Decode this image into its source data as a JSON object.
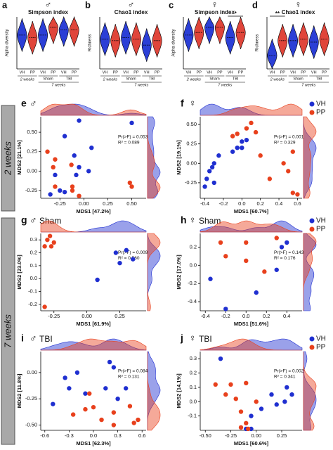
{
  "row_labels": [
    "2 weeks",
    "7 weeks"
  ],
  "chart_data": [
    {
      "type": "violin",
      "panel": "a",
      "symbol": "♂",
      "symbol_color": "#3a7bd5",
      "title": "Simpson index",
      "ylabel": "Alpha diversity",
      "ylim": [
        0.8,
        1.0
      ],
      "colors": [
        "#2b3fd6",
        "#e0453a"
      ],
      "groups": [
        {
          "label": "2 weeks",
          "categories": [
            "VH",
            "PP"
          ],
          "values": [
            0.93,
            0.92
          ]
        },
        {
          "label": "7 weeks",
          "subgroups": [
            {
              "label": "Sham",
              "categories": [
                "VH",
                "PP"
              ],
              "values": [
                0.93,
                0.96
              ]
            },
            {
              "label": "TBI",
              "categories": [
                "VH",
                "PP"
              ],
              "values": [
                0.95,
                0.95
              ]
            }
          ]
        }
      ]
    },
    {
      "type": "violin",
      "panel": "b",
      "symbol": "♂",
      "symbol_color": "#3a7bd5",
      "title": "Chao1 index",
      "ylabel": "Richness",
      "ylim": [
        100,
        450
      ],
      "colors": [
        "#2b3fd6",
        "#e0453a"
      ],
      "groups": [
        {
          "label": "2 weeks",
          "categories": [
            "VH",
            "PP"
          ],
          "values": [
            300,
            290
          ]
        },
        {
          "label": "7 weeks",
          "subgroups": [
            {
              "label": "Sham",
              "categories": [
                "VH",
                "PP"
              ],
              "values": [
                310,
                300
              ]
            },
            {
              "label": "TBI",
              "categories": [
                "VH",
                "PP"
              ],
              "values": [
                260,
                290
              ]
            }
          ]
        }
      ]
    },
    {
      "type": "violin",
      "panel": "c",
      "symbol": "♀",
      "symbol_color": "#c0607a",
      "title": "Simpson index",
      "ylabel": "Alpha diversity",
      "ylim": [
        0.8,
        1.0
      ],
      "colors": [
        "#2b3fd6",
        "#e0453a"
      ],
      "groups": [
        {
          "label": "2 weeks",
          "categories": [
            "VH",
            "PP"
          ],
          "values": [
            0.93,
            0.94
          ]
        },
        {
          "label": "7 weeks",
          "subgroups": [
            {
              "label": "Sham",
              "categories": [
                "VH",
                "PP"
              ],
              "values": [
                0.96,
                0.96
              ]
            },
            {
              "label": "TBI",
              "categories": [
                "VH",
                "PP"
              ],
              "values": [
                0.92,
                0.94
              ],
              "significance": "*"
            }
          ]
        }
      ]
    },
    {
      "type": "violin",
      "panel": "d",
      "symbol": "♀",
      "symbol_color": "#c0607a",
      "title": "Chao1 index",
      "ylabel": "Richness",
      "ylim": [
        100,
        450
      ],
      "colors": [
        "#2b3fd6",
        "#e0453a"
      ],
      "groups": [
        {
          "label": "2 weeks",
          "categories": [
            "VH",
            "PP"
          ],
          "values": [
            190,
            290
          ],
          "significance": "**"
        },
        {
          "label": "7 weeks",
          "subgroups": [
            {
              "label": "Sham",
              "categories": [
                "VH",
                "PP"
              ],
              "values": [
                290,
                300
              ]
            },
            {
              "label": "TBI",
              "categories": [
                "VH",
                "PP"
              ],
              "values": [
                280,
                300
              ]
            }
          ]
        }
      ]
    },
    {
      "type": "scatter",
      "panel": "e",
      "symbol": "♂",
      "symbol_color": "#3a7bd5",
      "xlabel": "MDS1 [47.2%]",
      "ylabel": "MDS2 [21.1%]",
      "annotations": [
        "Pr(>F) = 0.053",
        "R² = 0.089"
      ],
      "xlim": [
        -0.45,
        0.65
      ],
      "ylim": [
        -0.35,
        0.7
      ],
      "xticks": [
        -0.25,
        {
          "value": 0,
          "label": "0.00"
        },
        0.25,
        {
          "value": 0.5,
          "label": "0.50"
        }
      ],
      "yticks": [
        -0.25,
        {
          "value": 0,
          "label": "0.00"
        },
        0.25,
        {
          "value": 0.5,
          "label": "0.50"
        }
      ],
      "series": [
        {
          "name": "VH",
          "color": "#1f2fd0",
          "x": [
            -0.05,
            0.5,
            -0.2,
            0.08,
            -0.1,
            -0.05,
            0.05,
            -0.08,
            -0.3,
            -0.35,
            -0.25,
            -0.2
          ],
          "y": [
            0.65,
            0.62,
            0.45,
            0.3,
            0.2,
            0.05,
            0.0,
            -0.05,
            -0.05,
            -0.3,
            -0.25,
            -0.27
          ]
        },
        {
          "name": "PP",
          "color": "#e8401c",
          "x": [
            -0.38,
            -0.3,
            -0.32,
            -0.13,
            -0.12,
            -0.3,
            -0.05,
            0.48,
            0.5,
            -0.12
          ],
          "y": [
            0.25,
            0.15,
            0.05,
            0.08,
            -0.2,
            -0.2,
            -0.32,
            -0.15,
            -0.2,
            -0.25
          ]
        }
      ]
    },
    {
      "type": "scatter",
      "panel": "f",
      "symbol": "♀",
      "symbol_color": "#c0607a",
      "legend": true,
      "xlabel": "MDS1 [60.7%]",
      "ylabel": "MDS2 [19.1%]",
      "annotations": [
        "Pr(>F) = 0.001",
        "R² = 0.329"
      ],
      "xlim": [
        -0.45,
        0.65
      ],
      "ylim": [
        -0.45,
        0.6
      ],
      "xticks": [
        -0.4,
        -0.2,
        {
          "value": 0,
          "label": "0.0"
        },
        0.2,
        0.4,
        0.6
      ],
      "yticks": [
        -0.25,
        {
          "value": 0,
          "label": "0.00"
        },
        0.25,
        {
          "value": 0.5,
          "label": "0.50"
        }
      ],
      "series": [
        {
          "name": "VH",
          "color": "#1f2fd0",
          "x": [
            -0.4,
            -0.38,
            -0.35,
            -0.32,
            -0.3,
            -0.25,
            -0.1,
            -0.05,
            0.0,
            0.05,
            0.0,
            -0.3
          ],
          "y": [
            -0.3,
            -0.2,
            -0.1,
            -0.05,
            0.0,
            0.1,
            0.15,
            0.2,
            0.28,
            0.3,
            0.2,
            -0.25
          ]
        },
        {
          "name": "PP",
          "color": "#e8401c",
          "x": [
            0.1,
            0.15,
            0.05,
            -0.1,
            -0.05,
            0.55,
            0.5,
            0.55,
            0.6,
            0.3,
            0.45,
            0.2
          ],
          "y": [
            0.52,
            0.4,
            0.45,
            0.35,
            0.38,
            0.15,
            -0.1,
            -0.38,
            -0.4,
            -0.2,
            0.0,
            0.1
          ]
        }
      ]
    },
    {
      "type": "scatter",
      "panel": "g",
      "symbol": "♂",
      "symbol_color": "#3a7bd5",
      "subtitle": "Sham",
      "xlabel": "MDS1 [61.9%]",
      "ylabel": "MDS2 [23.0%]",
      "annotations": [
        "Pr(>F) = 0.009",
        "R² = 0.560"
      ],
      "xlim": [
        -0.35,
        0.45
      ],
      "ylim": [
        -0.25,
        0.35
      ],
      "xticks": [
        -0.25,
        {
          "value": 0,
          "label": "0.00"
        },
        0.25
      ],
      "yticks": [
        -0.2,
        -0.1,
        {
          "value": 0,
          "label": "0.0"
        },
        0.1,
        0.2,
        0.3
      ],
      "series": [
        {
          "name": "VH",
          "color": "#1f2fd0",
          "x": [
            0.22,
            0.3,
            0.35,
            0.25,
            0.08
          ],
          "y": [
            0.2,
            0.22,
            0.15,
            0.12,
            -0.01
          ]
        },
        {
          "name": "PP",
          "color": "#e8401c",
          "x": [
            -0.3,
            -0.25,
            -0.27,
            -0.32,
            -0.28,
            -0.32
          ],
          "y": [
            0.3,
            0.28,
            0.25,
            0.25,
            0.33,
            -0.22
          ]
        }
      ]
    },
    {
      "type": "scatter",
      "panel": "h",
      "symbol": "♀",
      "symbol_color": "#c0607a",
      "subtitle": "Sham",
      "legend": true,
      "xlabel": "MDS1 [51.6%]",
      "ylabel": "MDS2 [17.0%]",
      "annotations": [
        "Pr(>F) = 0.143",
        "R² = 0.176"
      ],
      "xlim": [
        -0.45,
        0.55
      ],
      "ylim": [
        -0.5,
        0.35
      ],
      "xticks": [
        -0.4,
        -0.2,
        {
          "value": 0,
          "label": "0.0"
        },
        0.2,
        0.4
      ],
      "yticks": [
        -0.4,
        -0.2,
        {
          "value": 0,
          "label": "0.0"
        },
        0.2
      ],
      "series": [
        {
          "name": "VH",
          "color": "#1f2fd0",
          "x": [
            -0.35,
            -0.2,
            0.1,
            0.35,
            0.3,
            0.4
          ],
          "y": [
            -0.15,
            -0.48,
            -0.3,
            0.2,
            -0.05,
            0.25
          ]
        },
        {
          "name": "PP",
          "color": "#e8401c",
          "x": [
            -0.25,
            0.0,
            -0.2,
            0.0,
            0.18,
            0.3
          ],
          "y": [
            0.25,
            0.25,
            0.1,
            0.05,
            -0.07,
            0.3
          ]
        }
      ]
    },
    {
      "type": "scatter",
      "panel": "i",
      "symbol": "♂",
      "symbol_color": "#3a7bd5",
      "subtitle": "TBI",
      "xlabel": "MDS1 [62.3%]",
      "ylabel": "MDS2 [11.8%]",
      "annotations": [
        "Pr(>F) = 0.084",
        "R² = 0.131"
      ],
      "xlim": [
        -0.65,
        0.65
      ],
      "ylim": [
        -0.55,
        0.2
      ],
      "xticks": [
        -0.6,
        -0.3,
        {
          "value": 0,
          "label": "0.0"
        },
        0.3,
        0.6
      ],
      "yticks": [
        {
          "value": -0.5,
          "label": "-0.50"
        },
        -0.25,
        {
          "value": 0,
          "label": "0.00"
        }
      ],
      "series": [
        {
          "name": "VH",
          "color": "#1f2fd0",
          "x": [
            0.2,
            0.25,
            -0.35,
            -0.2,
            -0.3,
            -0.5,
            -0.1,
            0.3,
            0.4,
            0.15
          ],
          "y": [
            0.1,
            0.05,
            -0.05,
            0.0,
            -0.15,
            -0.3,
            -0.2,
            -0.25,
            -0.15,
            -0.15
          ]
        },
        {
          "name": "PP",
          "color": "#e8401c",
          "x": [
            -0.05,
            -0.1,
            0.0,
            0.25,
            -0.25,
            0.1,
            0.55,
            0.5,
            0.25,
            0.45
          ],
          "y": [
            -0.2,
            -0.35,
            -0.33,
            -0.38,
            -0.4,
            -0.45,
            -0.45,
            -0.48,
            -0.5,
            -0.32
          ]
        }
      ]
    },
    {
      "type": "scatter",
      "panel": "j",
      "symbol": "♀",
      "symbol_color": "#c0607a",
      "subtitle": "TBI",
      "legend": true,
      "xlabel": "MDS1 [60.6%]",
      "ylabel": "MDS2 [14.1%]",
      "annotations": [
        "Pr(>F) = 0.002",
        "R² = 0.341"
      ],
      "xlim": [
        -0.55,
        0.45
      ],
      "ylim": [
        -0.2,
        0.35
      ],
      "xticks": [
        {
          "value": -0.5,
          "label": "-0.50"
        },
        -0.25,
        {
          "value": 0,
          "label": "0.00"
        },
        0.25
      ],
      "yticks": [
        -0.1,
        {
          "value": 0,
          "label": "0.0"
        },
        0.1,
        0.2,
        0.3
      ],
      "series": [
        {
          "name": "VH",
          "color": "#1f2fd0",
          "x": [
            -0.35,
            0.3,
            0.35,
            0.28,
            0.2,
            0.15,
            0.05,
            -0.05,
            -0.1,
            -0.05
          ],
          "y": [
            0.3,
            0.1,
            0.05,
            0.0,
            -0.02,
            0.05,
            -0.05,
            -0.1,
            -0.19,
            -0.19
          ]
        },
        {
          "name": "PP",
          "color": "#e8401c",
          "x": [
            -0.4,
            -0.3,
            -0.25,
            -0.1,
            -0.2,
            -0.15,
            -0.1,
            -0.15,
            -0.08,
            0.0
          ],
          "y": [
            0.12,
            0.05,
            0.12,
            0.13,
            0.02,
            -0.07,
            -0.15,
            -0.18,
            -0.19,
            0.0
          ]
        }
      ]
    }
  ]
}
